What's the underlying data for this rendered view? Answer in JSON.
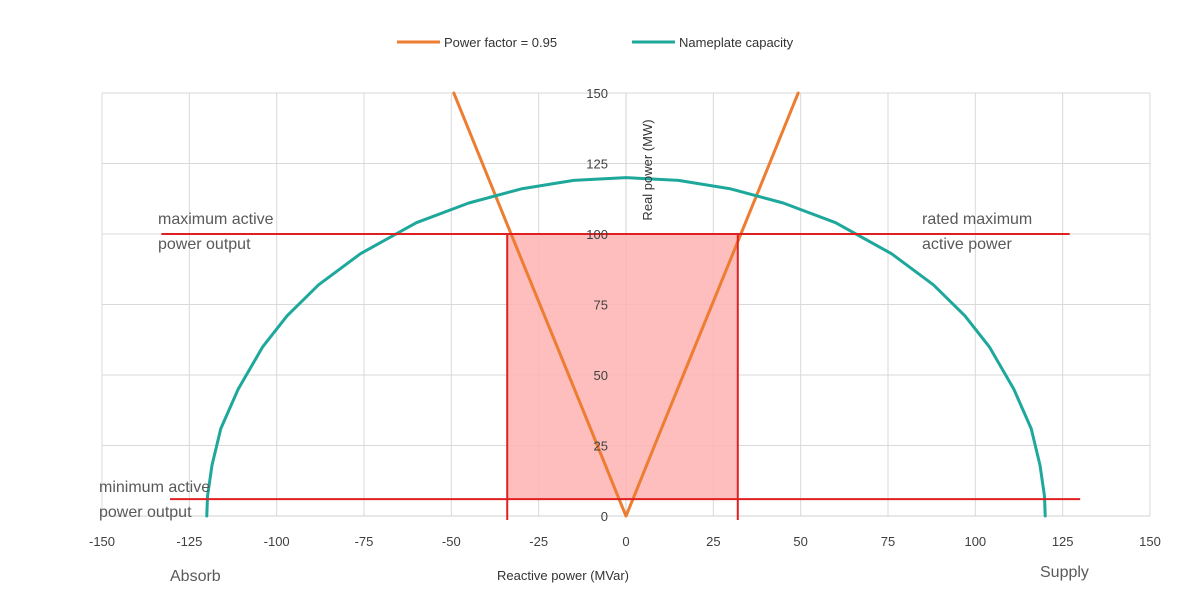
{
  "chart_data": {
    "type": "line",
    "title": "",
    "xlabel": "Reactive power (MVar)",
    "ylabel": "Real power (MW)",
    "xlim": [
      -150,
      150
    ],
    "ylim": [
      0,
      150
    ],
    "x_ticks": [
      -150,
      -125,
      -100,
      -75,
      -50,
      -25,
      0,
      25,
      50,
      75,
      100,
      125,
      150
    ],
    "y_ticks": [
      0,
      25,
      50,
      75,
      100,
      125,
      150
    ],
    "grid": true,
    "legend_position": "top-center",
    "colors": {
      "power_factor": "#ED7D31",
      "nameplate": "#1EA89B",
      "limits": "#E02020",
      "region_fill": "#FFB3B3"
    },
    "series": [
      {
        "name": "Power factor = 0.95",
        "x": [
          -49.3,
          -32.9,
          -16.4,
          -8.2,
          -3.3,
          -1.0,
          0,
          1.0,
          3.3,
          8.2,
          16.4,
          32.9,
          49.3
        ],
        "y": [
          150,
          100,
          50,
          25,
          10,
          3,
          0,
          3,
          10,
          25,
          50,
          100,
          150
        ]
      },
      {
        "name": "Nameplate capacity",
        "x": [
          -120,
          -119.8,
          -118.5,
          -116,
          -111,
          -104,
          -97,
          -88,
          -76,
          -60,
          -45,
          -30,
          -15,
          0,
          15,
          30,
          45,
          60,
          76,
          88,
          97,
          104,
          111,
          116,
          118.5,
          119.8,
          120
        ],
        "y": [
          0,
          7,
          18,
          31,
          45,
          60,
          71,
          82,
          93,
          104,
          111,
          116,
          119,
          120,
          119,
          116,
          111,
          104,
          93,
          82,
          71,
          60,
          45,
          31,
          18,
          7,
          0
        ]
      }
    ],
    "reference_lines": {
      "max_active_power_y": 100,
      "min_active_power_y": 6,
      "region_x": [
        -34,
        32
      ],
      "max_line_x": [
        -133,
        127
      ],
      "min_line_x": [
        -150,
        130
      ]
    },
    "annotations": {
      "max_left": [
        "maximum active",
        "power output"
      ],
      "max_right": [
        "rated maximum",
        "active power"
      ],
      "min_left": [
        "minimum active",
        "power output"
      ],
      "absorb": "Absorb",
      "supply": "Supply"
    }
  }
}
